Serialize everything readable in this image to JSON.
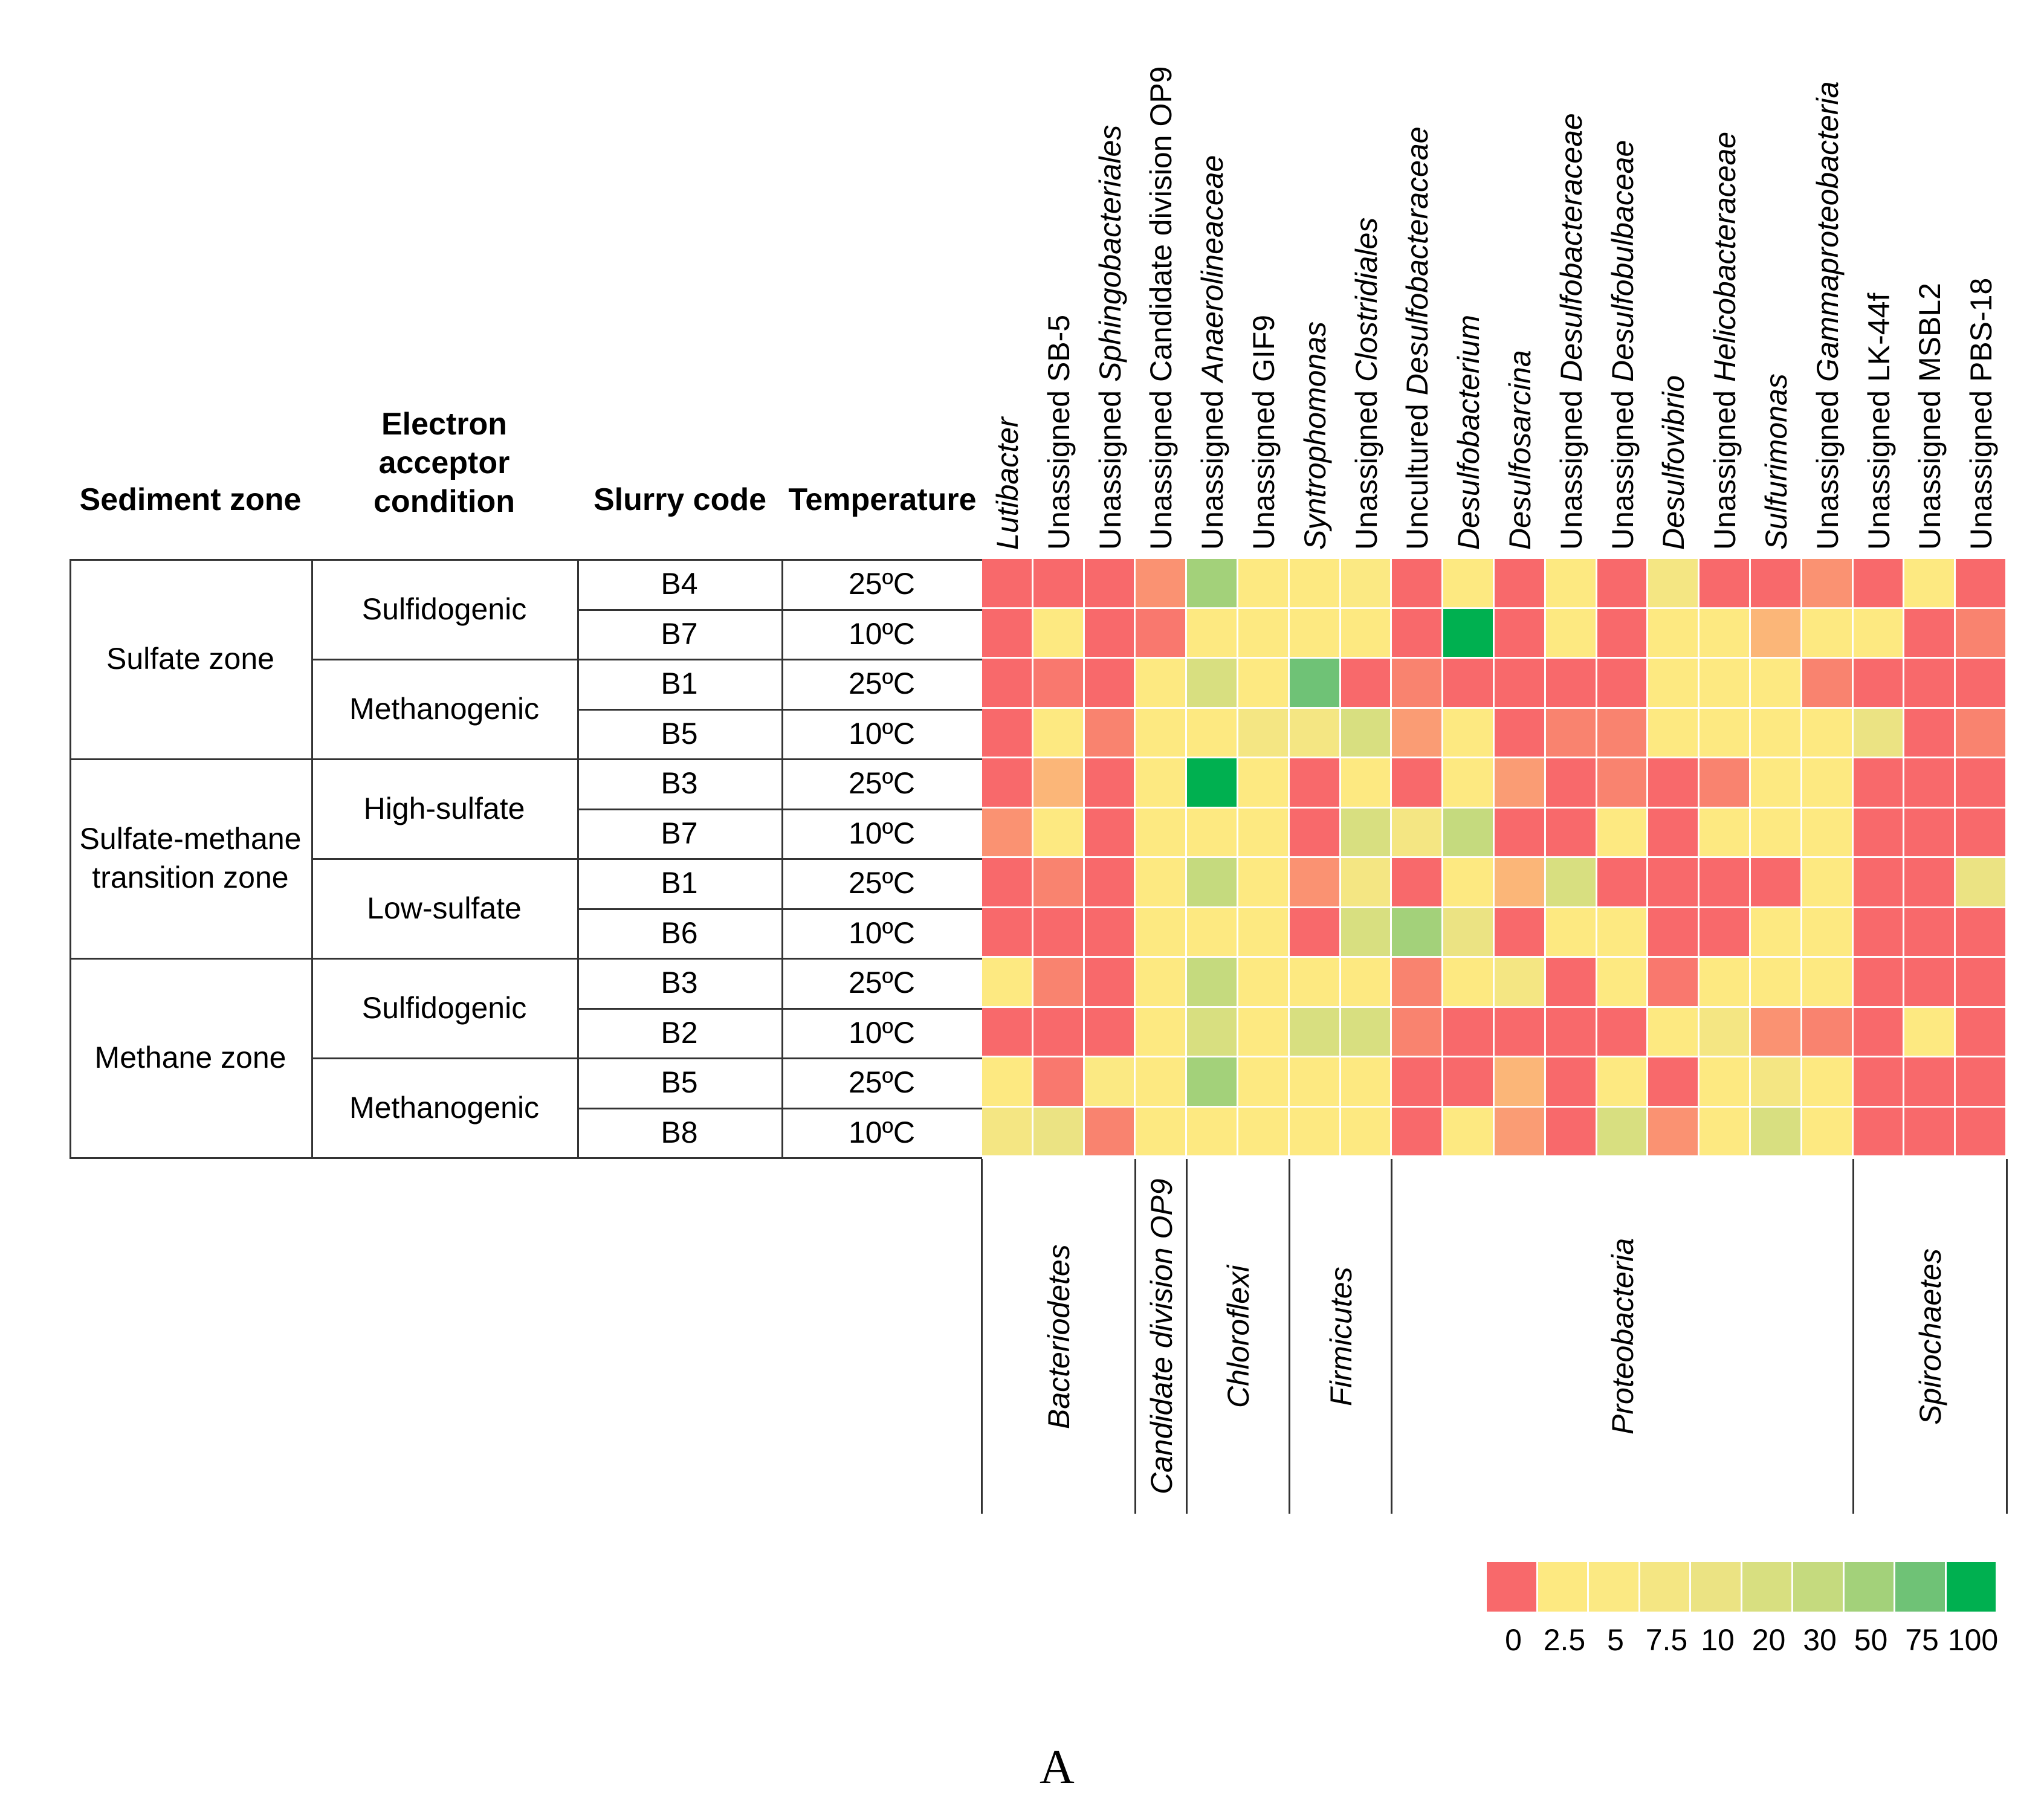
{
  "chart_data": {
    "type": "heatmap",
    "row_headers": [
      "Sediment zone",
      "Electron acceptor condition",
      "Slurry code",
      "Temperature"
    ],
    "zones": [
      {
        "label": "Sulfate zone",
        "rows": [
          0,
          3
        ]
      },
      {
        "label": "Sulfate-methane transition zone",
        "rows": [
          4,
          7
        ]
      },
      {
        "label": "Methane zone",
        "rows": [
          8,
          11
        ]
      }
    ],
    "conditions": [
      {
        "label": "Sulfidogenic",
        "rows": [
          0,
          1
        ]
      },
      {
        "label": "Methanogenic",
        "rows": [
          2,
          3
        ]
      },
      {
        "label": "High-sulfate",
        "rows": [
          4,
          5
        ]
      },
      {
        "label": "Low-sulfate",
        "rows": [
          6,
          7
        ]
      },
      {
        "label": "Sulfidogenic",
        "rows": [
          8,
          9
        ]
      },
      {
        "label": "Methanogenic",
        "rows": [
          10,
          11
        ]
      }
    ],
    "rows": [
      {
        "slurry": "B4",
        "temperature": "25ºC"
      },
      {
        "slurry": "B7",
        "temperature": "10ºC"
      },
      {
        "slurry": "B1",
        "temperature": "25ºC"
      },
      {
        "slurry": "B5",
        "temperature": "10ºC"
      },
      {
        "slurry": "B3",
        "temperature": "25ºC"
      },
      {
        "slurry": "B7",
        "temperature": "10ºC"
      },
      {
        "slurry": "B1",
        "temperature": "25ºC"
      },
      {
        "slurry": "B6",
        "temperature": "10ºC"
      },
      {
        "slurry": "B3",
        "temperature": "25ºC"
      },
      {
        "slurry": "B2",
        "temperature": "10ºC"
      },
      {
        "slurry": "B5",
        "temperature": "25ºC"
      },
      {
        "slurry": "B8",
        "temperature": "10ºC"
      }
    ],
    "columns": [
      {
        "prefix": "",
        "name": "Lutibacter"
      },
      {
        "prefix": "Unassigned SB-5",
        "name": ""
      },
      {
        "prefix": "Unassigned ",
        "name": "Sphingobacteriales"
      },
      {
        "prefix": "Unassigned Candidate division OP9",
        "name": ""
      },
      {
        "prefix": "Unassigned ",
        "name": "Anaerolineaceae"
      },
      {
        "prefix": "Unassigned GIF9",
        "name": ""
      },
      {
        "prefix": "",
        "name": "Syntrophomonas"
      },
      {
        "prefix": "Unassigned ",
        "name": "Clostridiales"
      },
      {
        "prefix": "Uncultured ",
        "name": "Desulfobacteraceae"
      },
      {
        "prefix": "",
        "name": "Desulfobacterium"
      },
      {
        "prefix": "",
        "name": "Desulfosarcina"
      },
      {
        "prefix": "Unassigned ",
        "name": "Desulfobacteraceae"
      },
      {
        "prefix": "Unassigned ",
        "name": "Desulfobulbaceae"
      },
      {
        "prefix": "",
        "name": "Desulfovibrio"
      },
      {
        "prefix": "Unassigned ",
        "name": "Helicobacteraceae"
      },
      {
        "prefix": "",
        "name": "Sulfurimonas"
      },
      {
        "prefix": "Unassigned ",
        "name": "Gammaproteobacteria"
      },
      {
        "prefix": "Unassigned LK-44f",
        "name": ""
      },
      {
        "prefix": "Unassigned MSBL2",
        "name": ""
      },
      {
        "prefix": "Unassigned PBS-18",
        "name": ""
      }
    ],
    "values": [
      [
        0,
        0,
        0,
        0.8,
        50,
        3,
        3,
        5,
        0,
        3,
        0,
        3,
        0,
        7.5,
        0,
        0,
        0.8,
        0,
        3,
        0
      ],
      [
        0,
        3,
        0,
        0.3,
        3,
        3,
        3,
        3,
        0,
        100,
        0,
        3,
        0,
        3,
        3,
        1.5,
        3,
        3,
        0,
        0.5
      ],
      [
        0,
        0.3,
        0,
        3,
        20,
        3,
        75,
        0,
        0.5,
        0,
        0,
        0,
        0,
        3,
        3,
        3,
        0.5,
        0,
        0,
        0
      ],
      [
        0,
        3,
        0.5,
        3,
        3,
        7.5,
        7.5,
        20,
        1,
        3,
        0,
        0.5,
        0.5,
        3,
        3,
        3,
        3,
        10,
        0,
        0.5
      ],
      [
        0,
        1.5,
        0,
        3,
        100,
        3,
        0,
        3,
        0,
        3,
        1,
        0,
        0.5,
        0,
        0.5,
        3,
        3,
        0,
        0,
        0
      ],
      [
        0.8,
        3,
        0,
        3,
        3,
        3,
        0,
        20,
        7.5,
        30,
        0,
        0,
        3,
        0,
        3,
        3,
        3,
        0,
        0,
        0
      ],
      [
        0,
        0.5,
        0,
        3,
        30,
        3,
        0.8,
        7.5,
        0,
        3,
        1.5,
        20,
        0,
        0,
        0,
        0,
        3,
        0,
        0,
        10
      ],
      [
        0,
        0,
        0,
        3,
        3,
        3,
        0,
        20,
        50,
        10,
        0,
        3,
        3,
        0,
        0,
        3,
        3,
        0,
        0,
        0
      ],
      [
        3,
        0.5,
        0,
        3,
        30,
        3,
        3,
        3,
        0.5,
        3,
        7.5,
        0,
        3,
        0.3,
        3,
        3,
        3,
        0,
        0,
        0
      ],
      [
        0,
        0,
        0,
        3,
        20,
        3,
        20,
        20,
        0.5,
        0,
        0,
        0,
        0,
        3,
        7.5,
        0.8,
        0.5,
        0,
        3,
        0
      ],
      [
        3,
        0.3,
        5,
        3,
        50,
        3,
        3,
        3,
        0,
        0,
        1.5,
        0,
        3,
        0,
        3,
        7.5,
        3,
        0,
        0,
        0
      ],
      [
        7.5,
        10,
        0.5,
        3,
        3,
        3,
        3,
        3,
        0,
        3,
        1,
        0,
        20,
        0.8,
        3,
        20,
        3,
        0,
        0,
        0
      ]
    ],
    "phyla": [
      {
        "label": "Bacteriodetes",
        "cols": [
          0,
          2
        ]
      },
      {
        "label": "Candidate division OP9",
        "cols": [
          3,
          3
        ]
      },
      {
        "label": "Chloroflexi",
        "cols": [
          4,
          5
        ]
      },
      {
        "label": "Firmicutes",
        "cols": [
          6,
          7
        ]
      },
      {
        "label": "Proteobacteria",
        "cols": [
          8,
          16
        ]
      },
      {
        "label": "Spirochaetes",
        "cols": [
          17,
          19
        ]
      }
    ],
    "legend": {
      "ticks": [
        "0",
        "2.5",
        "5",
        "7.5",
        "10",
        "20",
        "30",
        "50",
        "75",
        "100"
      ],
      "colors": [
        "#f8696b",
        "#fde981",
        "#fbe983",
        "#f4e683",
        "#ebe383",
        "#d8df80",
        "#c5da7e",
        "#a3d17a",
        "#6fc276",
        "#00b050"
      ]
    },
    "panel_label": "A"
  }
}
